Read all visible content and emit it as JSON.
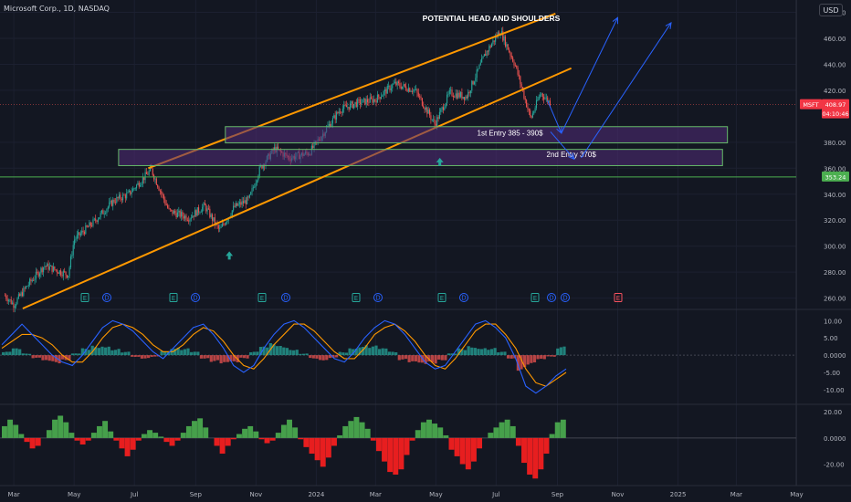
{
  "header": {
    "symbol_line": "Microsoft Corp., 1D, NASDAQ",
    "currency": "USD"
  },
  "chart_data": [
    {
      "type": "candlestick",
      "title": "POTENTIAL HEAD AND SHOULDERS",
      "symbol": "MSFT",
      "last_price": "408.97",
      "countdown": "04:10:46",
      "marked_level": "353.24",
      "ylim": [
        252,
        486
      ],
      "y_ticks": [
        "480.00",
        "460.00",
        "440.00",
        "420.00",
        "380.00",
        "360.00",
        "340.00",
        "320.00",
        "300.00",
        "280.00",
        "260.00"
      ],
      "x_ticks": [
        "Mar",
        "May",
        "Jul",
        "Sep",
        "Nov",
        "2024",
        "Mar",
        "May",
        "Jul",
        "Sep",
        "Nov",
        "2025",
        "Mar",
        "May"
      ],
      "ohlc_close_path": [
        {
          "x": "2023-02-20",
          "y": 262
        },
        {
          "x": "2023-03-01",
          "y": 255
        },
        {
          "x": "2023-03-15",
          "y": 270
        },
        {
          "x": "2023-04-01",
          "y": 285
        },
        {
          "x": "2023-04-25",
          "y": 278
        },
        {
          "x": "2023-05-01",
          "y": 305
        },
        {
          "x": "2023-05-20",
          "y": 318
        },
        {
          "x": "2023-06-10",
          "y": 335
        },
        {
          "x": "2023-06-25",
          "y": 340
        },
        {
          "x": "2023-07-18",
          "y": 359
        },
        {
          "x": "2023-08-05",
          "y": 327
        },
        {
          "x": "2023-08-25",
          "y": 322
        },
        {
          "x": "2023-09-10",
          "y": 331
        },
        {
          "x": "2023-09-25",
          "y": 312
        },
        {
          "x": "2023-10-10",
          "y": 330
        },
        {
          "x": "2023-10-25",
          "y": 336
        },
        {
          "x": "2023-11-05",
          "y": 360
        },
        {
          "x": "2023-11-20",
          "y": 375
        },
        {
          "x": "2023-12-05",
          "y": 368
        },
        {
          "x": "2023-12-25",
          "y": 372
        },
        {
          "x": "2024-01-10",
          "y": 389
        },
        {
          "x": "2024-01-25",
          "y": 405
        },
        {
          "x": "2024-02-10",
          "y": 410
        },
        {
          "x": "2024-03-01",
          "y": 413
        },
        {
          "x": "2024-03-20",
          "y": 425
        },
        {
          "x": "2024-04-10",
          "y": 420
        },
        {
          "x": "2024-04-30",
          "y": 394
        },
        {
          "x": "2024-05-15",
          "y": 418
        },
        {
          "x": "2024-06-01",
          "y": 415
        },
        {
          "x": "2024-06-20",
          "y": 448
        },
        {
          "x": "2024-07-05",
          "y": 466
        },
        {
          "x": "2024-07-20",
          "y": 440
        },
        {
          "x": "2024-08-05",
          "y": 398
        },
        {
          "x": "2024-08-15",
          "y": 418
        },
        {
          "x": "2024-08-25",
          "y": 410
        }
      ],
      "annotations": [
        {
          "text": "1st Entry 385 - 390$",
          "y_range": [
            385,
            390
          ]
        },
        {
          "text": "2nd Entry 370$",
          "y_range": [
            368,
            373
          ]
        }
      ],
      "event_markers": [
        "E",
        "D",
        "E",
        "D",
        "E",
        "D",
        "E",
        "D",
        "E",
        "D",
        "E",
        "D",
        "D",
        "E"
      ]
    },
    {
      "type": "bar",
      "title": "",
      "y_ticks": [
        "10.00",
        "5.00",
        "0.0000",
        "-5.00",
        "-10.00"
      ],
      "ylim": [
        -14,
        13
      ],
      "histogram": [
        1,
        2,
        0.5,
        -1,
        -2,
        -2.5,
        -1.5,
        0.5,
        2,
        3,
        3.2,
        2,
        1,
        -0.5,
        -1,
        -0.5,
        1.5,
        2.5,
        2,
        1,
        -1,
        -2,
        -2.8,
        -2.5,
        -1,
        1,
        2.5,
        3.5,
        3,
        2,
        0.5,
        -1,
        -1.5,
        -0.8,
        1,
        2.5,
        3.2,
        2.8,
        2,
        1,
        -1.5,
        -2.5,
        -3,
        -2.5,
        -1.5,
        0.5,
        2,
        3,
        2.5,
        2.2,
        1,
        -1,
        -4.5,
        -3,
        -1.5,
        -0.5,
        2.5
      ],
      "macd": [
        3,
        6,
        9,
        6,
        3,
        0,
        -2,
        -3,
        0,
        4,
        8,
        10,
        9,
        7,
        4,
        1,
        -1,
        2,
        5,
        8,
        9,
        6,
        2,
        -3,
        -5,
        -3,
        2,
        6,
        9,
        10,
        8,
        5,
        2,
        -1,
        -2,
        1,
        5,
        8,
        10,
        9,
        6,
        2,
        -2,
        -4,
        -3,
        1,
        5,
        9,
        10,
        8,
        5,
        -1,
        -9,
        -11,
        -9,
        -6,
        -4
      ],
      "signal": [
        2,
        4,
        6,
        6,
        5,
        3,
        0,
        -2,
        -2,
        1,
        5,
        8,
        9,
        8,
        6,
        3,
        1,
        1,
        3,
        6,
        8,
        7,
        4,
        0,
        -3,
        -4,
        -1,
        3,
        6,
        9,
        9,
        7,
        4,
        1,
        -1,
        -1,
        2,
        6,
        8,
        9,
        7,
        4,
        0,
        -3,
        -4,
        -1,
        3,
        7,
        9,
        9,
        6,
        2,
        -4,
        -8,
        -9,
        -7,
        -5
      ]
    },
    {
      "type": "area",
      "title": "",
      "y_ticks": [
        "20.00",
        "0.0000",
        "-20.00"
      ],
      "ylim": [
        -35,
        25
      ],
      "values": [
        9,
        14,
        10,
        3,
        -3,
        -8,
        -6,
        0,
        6,
        14,
        17,
        12,
        4,
        -2,
        -5,
        -2,
        4,
        9,
        13,
        5,
        -2,
        -8,
        -14,
        -9,
        -2,
        3,
        6,
        4,
        1,
        -3,
        -6,
        -2,
        4,
        9,
        13,
        15,
        8,
        0,
        -6,
        -12,
        -6,
        -1,
        3,
        7,
        9,
        5,
        -1,
        -4,
        -2,
        4,
        10,
        14,
        8,
        -1,
        -7,
        -12,
        -17,
        -22,
        -15,
        -6,
        2,
        9,
        13,
        16,
        12,
        7,
        -2,
        -10,
        -18,
        -26,
        -28,
        -24,
        -13,
        -2,
        6,
        12,
        14,
        11,
        8,
        2,
        -9,
        -14,
        -20,
        -24,
        -18,
        -8,
        0,
        4,
        8,
        12,
        14,
        9,
        -6,
        -19,
        -28,
        -31,
        -24,
        -12,
        3,
        12,
        14
      ]
    }
  ]
}
